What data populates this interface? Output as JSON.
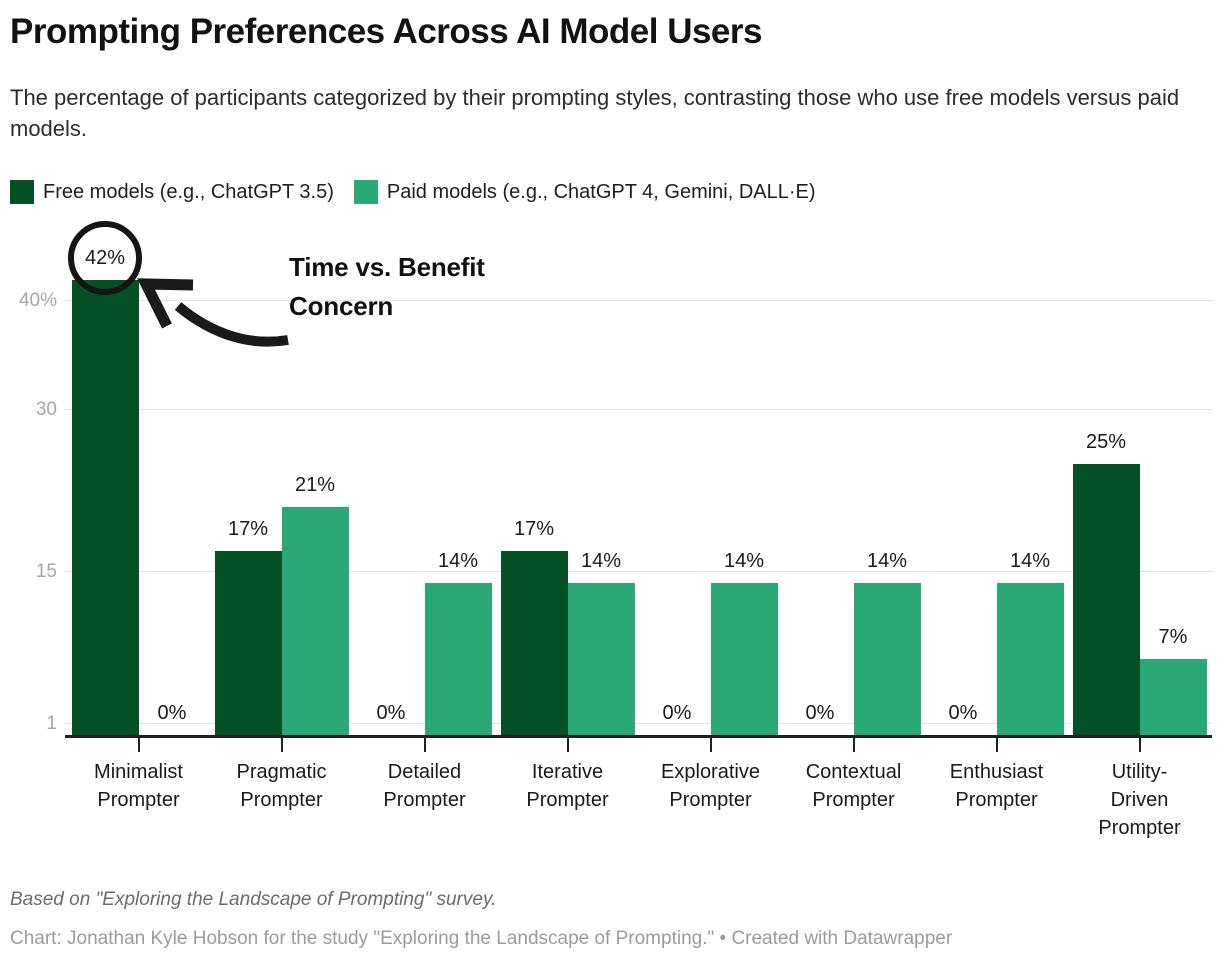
{
  "header": {
    "title": "Prompting Preferences Across AI Model Users",
    "subtitle": "The percentage of participants categorized by their prompting styles, contrasting those who use free models versus paid models."
  },
  "legend": [
    {
      "label": "Free models (e.g., ChatGPT 3.5)",
      "color": "#045128"
    },
    {
      "label": "Paid models (e.g., ChatGPT 4, Gemini, DALL·E)",
      "color": "#2ba878"
    }
  ],
  "annotation": {
    "lines": [
      "Time vs. Benefit",
      "Concern"
    ],
    "circled_value": "42%",
    "target": {
      "series": 0,
      "category": 0
    }
  },
  "chart_data": {
    "type": "bar",
    "title": "Prompting Preferences Across AI Model Users",
    "categories": [
      "Minimalist Prompter",
      "Pragmatic Prompter",
      "Detailed Prompter",
      "Iterative Prompter",
      "Explorative Prompter",
      "Contextual Prompter",
      "Enthusiast Prompter",
      "Utility-Driven Prompter"
    ],
    "series": [
      {
        "name": "Free models (e.g., ChatGPT 3.5)",
        "color": "#045128",
        "values": [
          42,
          17,
          0,
          17,
          0,
          0,
          0,
          25
        ]
      },
      {
        "name": "Paid models (e.g., ChatGPT 4, Gemini, DALL·E)",
        "color": "#2ba878",
        "values": [
          0,
          21,
          14,
          14,
          14,
          14,
          14,
          7
        ]
      }
    ],
    "value_suffix": "%",
    "xlabel": "",
    "ylabel": "",
    "ylim": [
      0,
      45
    ],
    "yticks": [
      {
        "value": 1,
        "label": "1"
      },
      {
        "value": 15,
        "label": "15"
      },
      {
        "value": 30,
        "label": "30"
      },
      {
        "value": 40,
        "label": "40%"
      }
    ],
    "grid": "horizontal",
    "legend_position": "top"
  },
  "footer": {
    "note": "Based on \"Exploring the Landscape of Prompting\" survey.",
    "byline": "Chart: Jonathan Kyle Hobson for the study \"Exploring the Landscape of Prompting.\" • Created with Datawrapper"
  }
}
